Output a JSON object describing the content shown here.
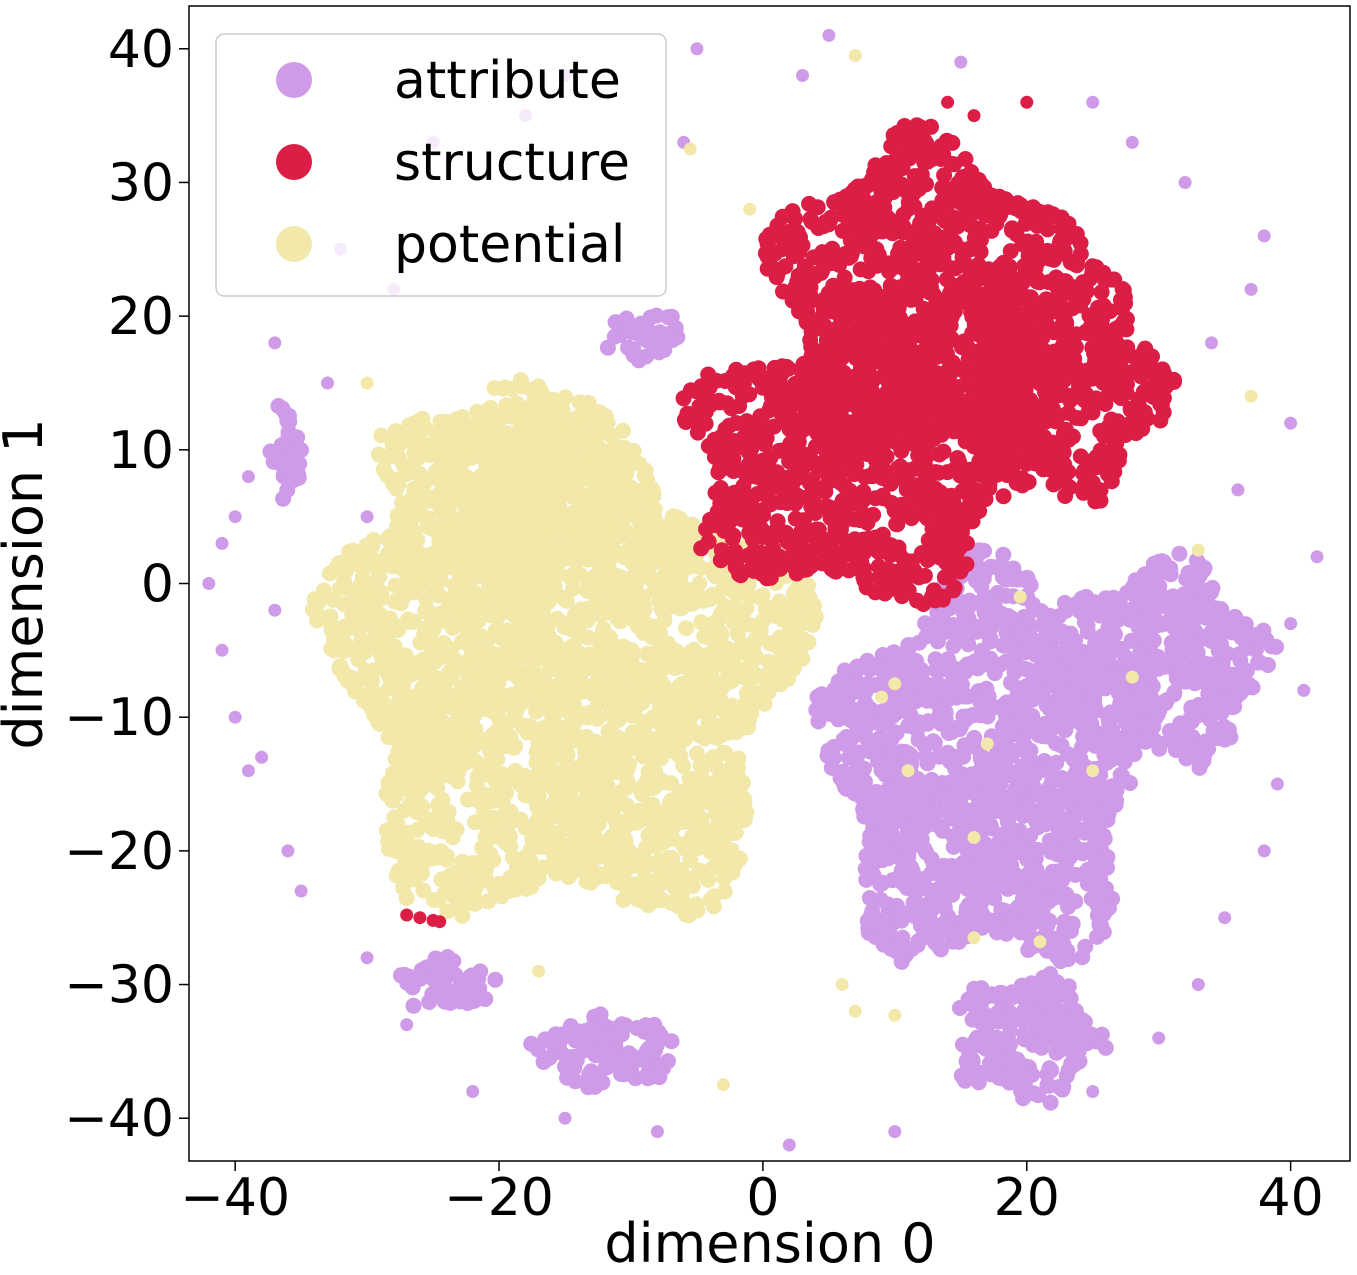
{
  "chart_data": {
    "type": "scatter",
    "title": "",
    "xlabel": "dimension 0",
    "ylabel": "dimension 1",
    "xlim": [
      -43.5,
      44.5
    ],
    "ylim": [
      -43.2,
      43.2
    ],
    "xticks": [
      -40,
      -20,
      0,
      20,
      40
    ],
    "yticks": [
      -40,
      -30,
      -20,
      -10,
      0,
      10,
      20,
      30,
      40
    ],
    "xtick_labels": [
      "−40",
      "−20",
      "0",
      "20",
      "40"
    ],
    "ytick_labels": [
      "−40",
      "−30",
      "−20",
      "−10",
      "0",
      "10",
      "20",
      "30",
      "40"
    ],
    "grid": false,
    "legend_position": "top-left",
    "series": [
      {
        "name": "attribute",
        "color": "#cf9be8",
        "clusters": [
          {
            "cx": 17,
            "cy": -14,
            "rx": 13,
            "ry": 16
          },
          {
            "cx": 30,
            "cy": -6,
            "rx": 9,
            "ry": 8
          },
          {
            "cx": 20,
            "cy": -34,
            "rx": 6,
            "ry": 5
          },
          {
            "cx": -9,
            "cy": 18.5,
            "rx": 3.5,
            "ry": 1.8
          },
          {
            "cx": -36,
            "cy": 10,
            "rx": 1.3,
            "ry": 4
          },
          {
            "cx": -12,
            "cy": -35,
            "rx": 6,
            "ry": 3
          },
          {
            "cx": -24,
            "cy": -30,
            "rx": 4,
            "ry": 2
          }
        ],
        "scatter_points": [
          [
            -41,
            -5
          ],
          [
            -42,
            0
          ],
          [
            -39,
            8
          ],
          [
            -40,
            -10
          ],
          [
            -41,
            3
          ],
          [
            -38,
            -13
          ],
          [
            -35,
            -23
          ],
          [
            -30,
            -28
          ],
          [
            -27,
            -33
          ],
          [
            -22,
            -38
          ],
          [
            -15,
            -40
          ],
          [
            -8,
            -41
          ],
          [
            2,
            -42
          ],
          [
            10,
            -41
          ],
          [
            25,
            -38
          ],
          [
            33,
            -30
          ],
          [
            38,
            -20
          ],
          [
            41,
            -8
          ],
          [
            42,
            2
          ],
          [
            40,
            12
          ],
          [
            37,
            22
          ],
          [
            32,
            30
          ],
          [
            25,
            36
          ],
          [
            15,
            39
          ],
          [
            5,
            41
          ],
          [
            -5,
            40
          ],
          [
            -15,
            38
          ],
          [
            -25,
            33
          ],
          [
            -32,
            25
          ],
          [
            -37,
            18
          ],
          [
            35,
            -25
          ],
          [
            30,
            -34
          ],
          [
            -36,
            -20
          ],
          [
            -33,
            15
          ],
          [
            39,
            -15
          ],
          [
            -6,
            33
          ],
          [
            3,
            38
          ],
          [
            -18,
            35
          ],
          [
            28,
            33
          ],
          [
            36,
            7
          ],
          [
            -40,
            5
          ],
          [
            -37,
            -2
          ],
          [
            -39,
            -14
          ],
          [
            40,
            -3
          ],
          [
            -30,
            5
          ],
          [
            -28,
            22
          ],
          [
            34,
            18
          ],
          [
            38,
            26
          ]
        ]
      },
      {
        "name": "structure",
        "color": "#dc1e46",
        "clusters": [
          {
            "cx": 12,
            "cy": 22,
            "rx": 12,
            "ry": 12
          },
          {
            "cx": 7,
            "cy": 9,
            "rx": 14,
            "ry": 11
          },
          {
            "cx": 23,
            "cy": 15,
            "rx": 8,
            "ry": 9
          }
        ],
        "scatter_points": [
          [
            -27,
            -24.8
          ],
          [
            -26,
            -25
          ],
          [
            -25,
            -25.2
          ],
          [
            -24.5,
            -25.3
          ],
          [
            14,
            36
          ],
          [
            16,
            35
          ],
          [
            20,
            36
          ]
        ]
      },
      {
        "name": "potential",
        "color": "#f1e8aa",
        "clusters": [
          {
            "cx": -15,
            "cy": -7,
            "rx": 19,
            "ry": 20
          },
          {
            "cx": -20,
            "cy": 7,
            "rx": 10,
            "ry": 8
          }
        ],
        "scatter_points": [
          [
            -5.5,
            32.5
          ],
          [
            -1,
            28
          ],
          [
            12,
            32.5
          ],
          [
            14,
            19.5
          ],
          [
            -1,
            3
          ],
          [
            19.5,
            -1
          ],
          [
            -3,
            -1.5
          ],
          [
            10,
            -7.5
          ],
          [
            9,
            -8.5
          ],
          [
            17,
            -12
          ],
          [
            11,
            -14
          ],
          [
            16,
            -19
          ],
          [
            16,
            -26.5
          ],
          [
            21,
            -26.8
          ],
          [
            6,
            -30
          ],
          [
            7,
            -32
          ],
          [
            10,
            -32.3
          ],
          [
            33,
            2.5
          ],
          [
            28,
            -7
          ],
          [
            25,
            -14
          ],
          [
            37,
            14
          ],
          [
            7,
            39.5
          ],
          [
            -3,
            -37.5
          ],
          [
            -30,
            15
          ],
          [
            -17,
            -29
          ]
        ]
      }
    ]
  }
}
